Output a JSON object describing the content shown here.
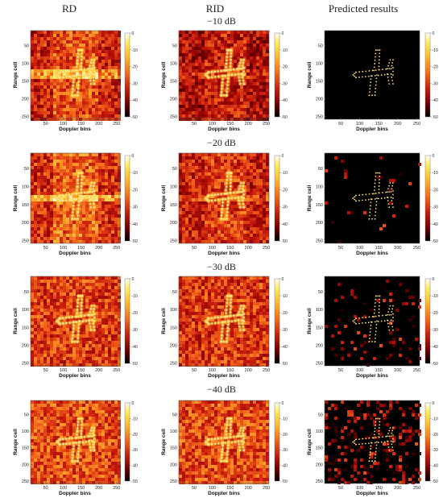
{
  "headers": {
    "rd": "RD",
    "rid": "RID",
    "predicted": "Predicted results"
  },
  "snr_labels": [
    "−10 dB",
    "−20 dB",
    "−30 dB",
    "−40 dB"
  ],
  "axes": {
    "xlabel": "Doppler bins",
    "ylabel": "Range cell",
    "x_ticks": {
      "rd": [
        "50",
        "100",
        "150",
        "200",
        "250"
      ],
      "rid": [
        "50",
        "100",
        "150",
        "200",
        "250"
      ],
      "predicted": [
        "50",
        "100",
        "150",
        "200",
        "250"
      ]
    },
    "y_ticks": [
      "50",
      "100",
      "150",
      "200",
      "250"
    ]
  },
  "colorbar_ticks": [
    "0",
    "-10",
    "-20",
    "-30",
    "-40",
    "-50"
  ],
  "colors": {
    "hot": [
      "#000000",
      "#3a0000",
      "#8b0000",
      "#c81b0c",
      "#ee5a17",
      "#ffa42a",
      "#ffe35a",
      "#fffdf0"
    ]
  },
  "panels_noise": {
    "rd": [
      0.55,
      0.65,
      0.72,
      0.8
    ],
    "rid": [
      0.4,
      0.55,
      0.68,
      0.78
    ],
    "predicted": [
      0.0,
      0.03,
      0.1,
      0.3
    ]
  }
}
